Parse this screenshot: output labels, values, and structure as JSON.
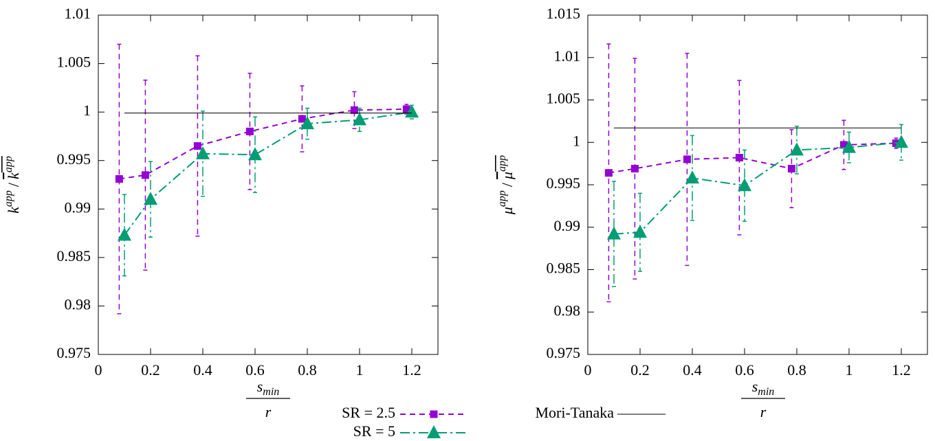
{
  "chart_data": [
    {
      "type": "errorbar-line",
      "xlabel": [
        "s",
        "min",
        "r"
      ],
      "ylabel": [
        "k",
        "app",
        "/",
        "k",
        "app"
      ],
      "xlim": [
        0,
        1.3
      ],
      "ylim": [
        0.975,
        1.01
      ],
      "xticks": [
        0,
        0.2,
        0.4,
        0.6,
        0.8,
        1,
        1.2
      ],
      "yticks": [
        0.975,
        0.98,
        0.985,
        0.99,
        0.995,
        1,
        1.005,
        1.01
      ],
      "series": [
        {
          "name": "SR = 2.5",
          "color": "#9400d3",
          "marker": "square",
          "dash": "8,6",
          "x": [
            0.08,
            0.18,
            0.38,
            0.58,
            0.78,
            0.98,
            1.18
          ],
          "values": [
            0.9931,
            0.9935,
            0.9965,
            0.998,
            0.9993,
            1.0002,
            1.0003
          ],
          "errors": [
            0.0139,
            0.0098,
            0.0093,
            0.006,
            0.0034,
            0.0019,
            0.0005
          ]
        },
        {
          "name": "SR = 5",
          "color": "#009e73",
          "marker": "triangle",
          "dash": "14,5,3,5",
          "x": [
            0.1,
            0.2,
            0.4,
            0.6,
            0.8,
            1,
            1.2
          ],
          "values": [
            0.9873,
            0.991,
            0.9957,
            0.9956,
            0.9988,
            0.9992,
            1.0
          ],
          "errors": [
            0.0042,
            0.0039,
            0.0044,
            0.0039,
            0.0016,
            0.0012,
            0.0007
          ]
        },
        {
          "name": "Mori-Tanaka",
          "color": "#000000",
          "marker": "none",
          "dash": "none",
          "x": [
            0.1,
            1.2
          ],
          "values": [
            0.9999,
            0.9999
          ]
        }
      ]
    },
    {
      "type": "errorbar-line",
      "xlabel": [
        "s",
        "min",
        "r"
      ],
      "ylabel": [
        "μ",
        "app",
        "/",
        "μ",
        "app"
      ],
      "xlim": [
        0,
        1.3
      ],
      "ylim": [
        0.975,
        1.015
      ],
      "xticks": [
        0,
        0.2,
        0.4,
        0.6,
        0.8,
        1,
        1.2
      ],
      "yticks": [
        0.975,
        0.98,
        0.985,
        0.99,
        0.995,
        1,
        1.005,
        1.01,
        1.015
      ],
      "series": [
        {
          "name": "SR = 2.5",
          "color": "#9400d3",
          "marker": "square",
          "dash": "8,6",
          "x": [
            0.08,
            0.18,
            0.38,
            0.58,
            0.78,
            0.98,
            1.18
          ],
          "values": [
            0.9964,
            0.9969,
            0.998,
            0.9982,
            0.9969,
            0.9997,
            0.9999
          ],
          "errors": [
            0.0152,
            0.013,
            0.0125,
            0.0091,
            0.0046,
            0.0029,
            0.0006
          ]
        },
        {
          "name": "SR = 5",
          "color": "#009e73",
          "marker": "triangle",
          "dash": "14,5,3,5",
          "x": [
            0.1,
            0.2,
            0.4,
            0.6,
            0.8,
            1,
            1.2
          ],
          "values": [
            0.9892,
            0.9894,
            0.9958,
            0.9949,
            0.9991,
            0.9994,
            1.0
          ],
          "errors": [
            0.0062,
            0.0046,
            0.005,
            0.0042,
            0.0028,
            0.0018,
            0.0021
          ]
        },
        {
          "name": "Mori-Tanaka",
          "color": "#000000",
          "marker": "none",
          "dash": "none",
          "x": [
            0.1,
            1.2
          ],
          "values": [
            1.0017,
            1.0017
          ]
        }
      ]
    }
  ]
}
